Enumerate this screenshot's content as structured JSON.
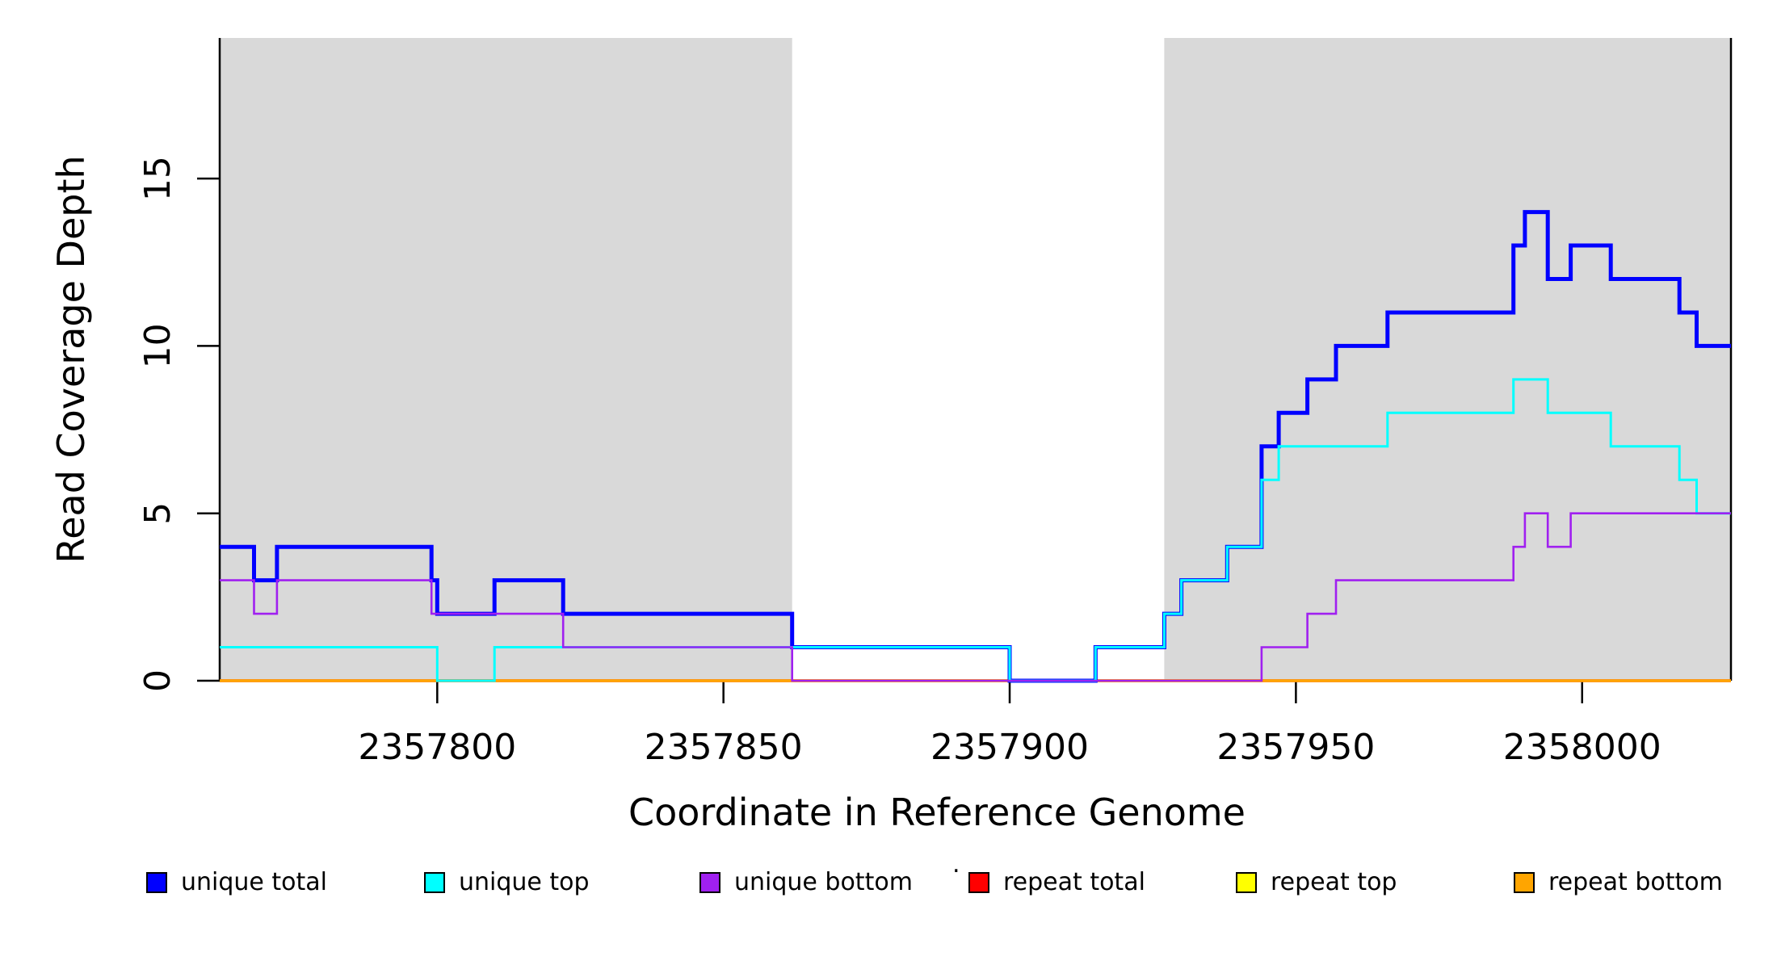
{
  "figure": {
    "background": "#ffffff",
    "y_axis_title": "Read Coverage Depth",
    "x_axis_title": "Coordinate in Reference Genome"
  },
  "legend": {
    "stray_dot": ".",
    "items": [
      {
        "label": "unique total",
        "color": "#0000FF"
      },
      {
        "label": "unique top",
        "color": "#00FFFF"
      },
      {
        "label": "unique bottom",
        "color": "#A020F0"
      },
      {
        "label": "repeat total",
        "color": "#FF0000"
      },
      {
        "label": "repeat top",
        "color": "#FFFF00"
      },
      {
        "label": "repeat bottom",
        "color": "#FFA500"
      }
    ]
  },
  "chart_data": {
    "type": "line",
    "subtype": "step",
    "title": "",
    "xlabel": "Coordinate in Reference Genome",
    "ylabel": "Read Coverage Depth",
    "xlim": [
      2357762,
      2358026
    ],
    "ylim": [
      0,
      19.2
    ],
    "x_ticks": [
      2357800,
      2357850,
      2357900,
      2357950,
      2358000
    ],
    "y_ticks": [
      0,
      5,
      10,
      15
    ],
    "grid": false,
    "legend_position": "bottom",
    "shaded_regions": [
      {
        "name": "unique-region-left",
        "x0": 2357762,
        "x1": 2357862,
        "color": "#D9D9D9"
      },
      {
        "name": "unique-region-right",
        "x0": 2357927,
        "x1": 2358026,
        "color": "#D9D9D9"
      }
    ],
    "series": [
      {
        "name": "unique total",
        "color": "#0000FF",
        "line_width": 5,
        "z": 4,
        "steps": [
          [
            2357762,
            4
          ],
          [
            2357768,
            3
          ],
          [
            2357772,
            4
          ],
          [
            2357799,
            3
          ],
          [
            2357800,
            2
          ],
          [
            2357810,
            3
          ],
          [
            2357822,
            2
          ],
          [
            2357862,
            1
          ],
          [
            2357900,
            0
          ],
          [
            2357915,
            1
          ],
          [
            2357927,
            2
          ],
          [
            2357930,
            3
          ],
          [
            2357938,
            4
          ],
          [
            2357944,
            7
          ],
          [
            2357947,
            8
          ],
          [
            2357952,
            9
          ],
          [
            2357957,
            10
          ],
          [
            2357966,
            11
          ],
          [
            2357988,
            13
          ],
          [
            2357990,
            14
          ],
          [
            2357994,
            12
          ],
          [
            2357998,
            13
          ],
          [
            2358005,
            12
          ],
          [
            2358017,
            11
          ],
          [
            2358020,
            10
          ]
        ]
      },
      {
        "name": "unique top",
        "color": "#00FFFF",
        "line_width": 3,
        "z": 5,
        "steps": [
          [
            2357762,
            1
          ],
          [
            2357800,
            0
          ],
          [
            2357810,
            1
          ],
          [
            2357900,
            0
          ],
          [
            2357915,
            1
          ],
          [
            2357927,
            2
          ],
          [
            2357930,
            3
          ],
          [
            2357938,
            4
          ],
          [
            2357944,
            6
          ],
          [
            2357947,
            7
          ],
          [
            2357966,
            8
          ],
          [
            2357988,
            9
          ],
          [
            2357994,
            8
          ],
          [
            2358005,
            7
          ],
          [
            2358017,
            6
          ],
          [
            2358020,
            5
          ]
        ]
      },
      {
        "name": "unique bottom",
        "color": "#A020F0",
        "line_width": 2.6,
        "z": 6,
        "steps": [
          [
            2357762,
            3
          ],
          [
            2357768,
            2
          ],
          [
            2357772,
            3
          ],
          [
            2357799,
            2
          ],
          [
            2357822,
            1
          ],
          [
            2357862,
            0
          ],
          [
            2357944,
            1
          ],
          [
            2357952,
            2
          ],
          [
            2357957,
            3
          ],
          [
            2357988,
            4
          ],
          [
            2357990,
            5
          ],
          [
            2357994,
            4
          ],
          [
            2357998,
            5
          ]
        ]
      },
      {
        "name": "repeat total",
        "color": "#FF0000",
        "line_width": 3.5,
        "z": 1,
        "steps": [
          [
            2357762,
            0
          ]
        ]
      },
      {
        "name": "repeat top",
        "color": "#FFFF00",
        "line_width": 3,
        "z": 2,
        "steps": [
          [
            2357762,
            0
          ]
        ]
      },
      {
        "name": "repeat bottom",
        "color": "#FFA500",
        "line_width": 3.5,
        "z": 3,
        "steps": [
          [
            2357762,
            0
          ]
        ]
      }
    ]
  }
}
